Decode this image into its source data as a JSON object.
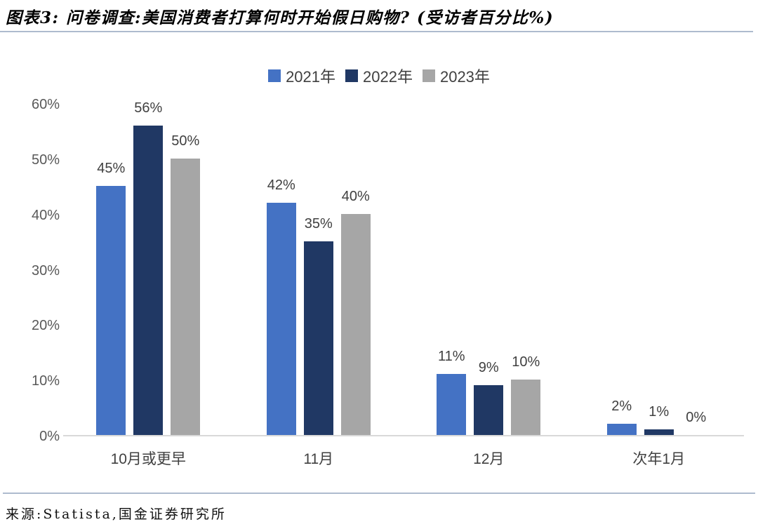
{
  "chart_data": {
    "type": "bar",
    "title": "图表3: 问卷调查:美国消费者打算何时开始假日购物? (受访者百分比%)",
    "categories": [
      "10月或更早",
      "11月",
      "12月",
      "次年1月"
    ],
    "series": [
      {
        "name": "2021年",
        "color": "#4472C4",
        "values": [
          45,
          42,
          11,
          2
        ]
      },
      {
        "name": "2022年",
        "color": "#203864",
        "values": [
          56,
          35,
          9,
          1
        ]
      },
      {
        "name": "2023年",
        "color": "#A6A6A6",
        "values": [
          50,
          40,
          10,
          0
        ]
      }
    ],
    "xlabel": "",
    "ylabel": "",
    "ylim": [
      0,
      60
    ],
    "yticks": [
      0,
      10,
      20,
      30,
      40,
      50,
      60
    ],
    "ytick_suffix": "%",
    "value_label_suffix": "%",
    "legend_position": "top",
    "grid": false
  },
  "footer": {
    "source": "来源:Statista,国金证券研究所"
  },
  "theme": {
    "rule_line": "#AEBBCE",
    "axis_line": "#D9D9D9",
    "tick_text_color": "#595959",
    "label_text_color": "#404040",
    "background": "#FFFFFF"
  }
}
